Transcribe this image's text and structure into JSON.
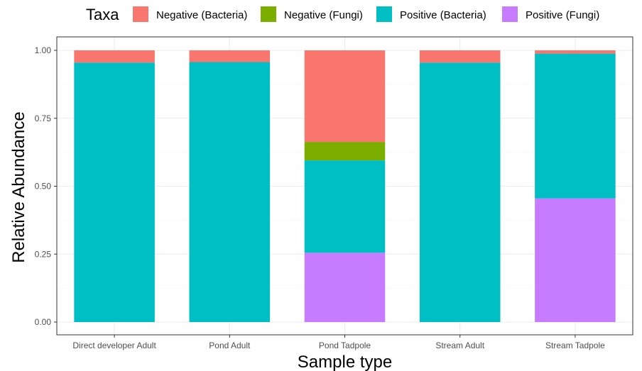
{
  "chart_data": {
    "type": "bar",
    "stacked": true,
    "xlabel": "Sample type",
    "ylabel": "Relative Abundance",
    "ylim": [
      0,
      1
    ],
    "yticks": [
      "0.00",
      "0.25",
      "0.50",
      "0.75",
      "1.00"
    ],
    "grid": true,
    "legend_title": "Taxa",
    "legend_position": "top",
    "categories": [
      "Direct developer Adult",
      "Pond Adult",
      "Pond Tadpole",
      "Stream Adult",
      "Stream Tadpole"
    ],
    "series": [
      {
        "name": "Positive (Fungi)",
        "color": "#C77CFF",
        "values": [
          0.0,
          0.0,
          0.255,
          0.0,
          0.455
        ]
      },
      {
        "name": "Positive (Bacteria)",
        "color": "#00BFC4",
        "values": [
          0.955,
          0.957,
          0.34,
          0.955,
          0.533
        ]
      },
      {
        "name": "Negative (Fungi)",
        "color": "#7CAE00",
        "values": [
          0.0,
          0.0,
          0.068,
          0.0,
          0.0
        ]
      },
      {
        "name": "Negative (Bacteria)",
        "color": "#F8766D",
        "values": [
          0.045,
          0.043,
          0.337,
          0.045,
          0.012
        ]
      }
    ],
    "legend_order": [
      "Negative (Bacteria)",
      "Negative (Fungi)",
      "Positive (Bacteria)",
      "Positive (Fungi)"
    ]
  }
}
